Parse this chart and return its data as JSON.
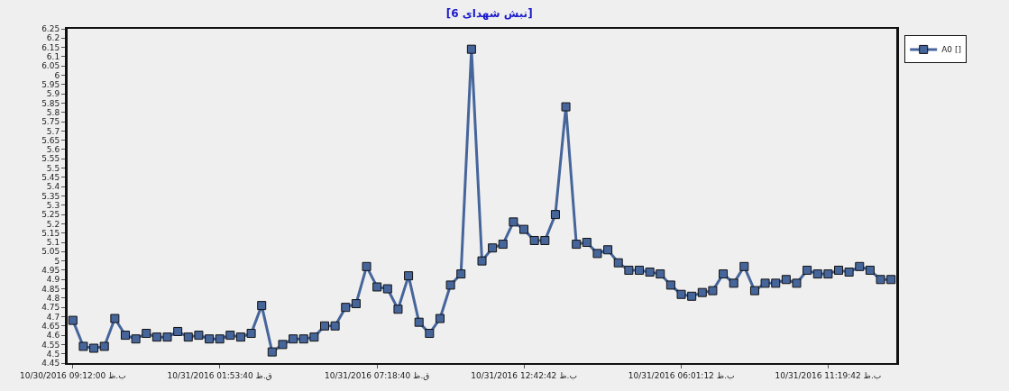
{
  "chart_data": {
    "type": "line",
    "title": "[نبش شهدای 6]",
    "categories": [
      "10/30/2016 09:12:00 ب.ظ",
      null,
      null,
      null,
      null,
      null,
      null,
      null,
      null,
      null,
      null,
      null,
      null,
      null,
      "10/31/2016 01:53:40 ق.ظ",
      null,
      null,
      null,
      null,
      null,
      null,
      null,
      null,
      null,
      null,
      null,
      null,
      null,
      null,
      "10/31/2016 07:18:40 ق.ظ",
      null,
      null,
      null,
      null,
      null,
      null,
      null,
      null,
      null,
      null,
      null,
      null,
      null,
      "10/31/2016 12:42:42 ب.ظ",
      null,
      null,
      null,
      null,
      null,
      null,
      null,
      null,
      null,
      null,
      null,
      null,
      null,
      null,
      "10/31/2016 06:01:12 ب.ظ",
      null,
      null,
      null,
      null,
      null,
      null,
      null,
      null,
      null,
      null,
      null,
      null,
      null,
      "10/31/2016 11:19:42 ب.ظ",
      null,
      null,
      null,
      null,
      null,
      null
    ],
    "series": [
      {
        "name": "A0 []",
        "color": "#46659b",
        "values": [
          4.68,
          4.54,
          4.53,
          4.54,
          4.69,
          4.6,
          4.58,
          4.61,
          4.59,
          4.59,
          4.62,
          4.59,
          4.6,
          4.58,
          4.58,
          4.6,
          4.59,
          4.61,
          4.76,
          4.51,
          4.55,
          4.58,
          4.58,
          4.59,
          4.65,
          4.65,
          4.75,
          4.77,
          4.97,
          4.86,
          4.85,
          4.74,
          4.92,
          4.67,
          4.61,
          4.69,
          4.87,
          4.93,
          6.14,
          5.0,
          5.07,
          5.09,
          5.21,
          5.17,
          5.11,
          5.11,
          5.25,
          5.83,
          5.09,
          5.1,
          5.04,
          5.06,
          4.99,
          4.95,
          4.95,
          4.94,
          4.93,
          4.87,
          4.82,
          4.81,
          4.83,
          4.84,
          4.93,
          4.88,
          4.97,
          4.84,
          4.88,
          4.88,
          4.9,
          4.88,
          4.95,
          4.93,
          4.93,
          4.95,
          4.94,
          4.97,
          4.95,
          4.9,
          4.9
        ]
      }
    ],
    "ylim": [
      4.45,
      6.25
    ],
    "yticks": [
      4.45,
      4.5,
      4.55,
      4.6,
      4.65,
      4.7,
      4.75,
      4.8,
      4.85,
      4.9,
      4.95,
      5,
      5.05,
      5.1,
      5.15,
      5.2,
      5.25,
      5.3,
      5.35,
      5.4,
      5.45,
      5.5,
      5.55,
      5.6,
      5.65,
      5.7,
      5.75,
      5.8,
      5.85,
      5.9,
      5.95,
      6,
      6.05,
      6.1,
      6.15,
      6.2,
      6.25
    ],
    "grid": false,
    "legend": "top right",
    "marker": "square",
    "line_style": "solid"
  }
}
